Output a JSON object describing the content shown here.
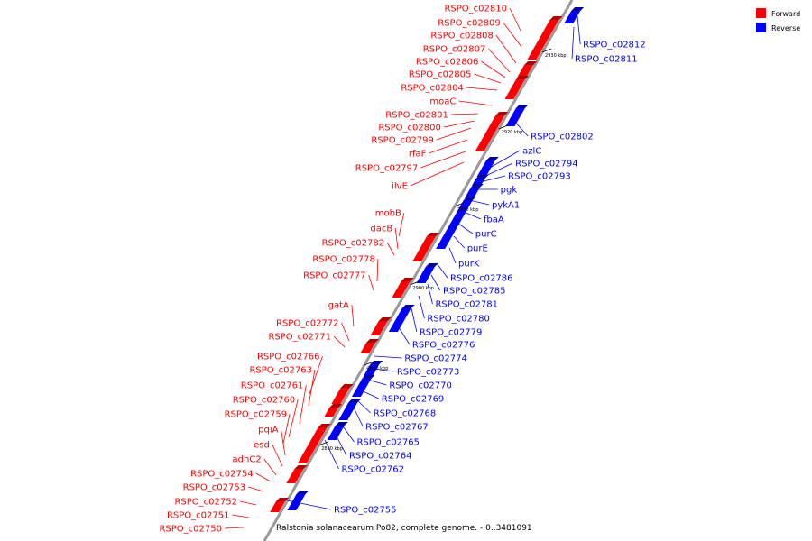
{
  "legend": [
    {
      "label": "Forward",
      "color": "#ff0000"
    },
    {
      "label": "Reverse",
      "color": "#0000ff"
    }
  ],
  "colors": {
    "forward": "#ff0000",
    "reverse": "#0000ff",
    "axis": "#999999",
    "line": "#000000"
  },
  "caption": "Ralstonia solanacearum Po82, complete genome. - 0..3481091",
  "scale_labels": [
    "2930 kbp",
    "2920 kbp",
    "2910 kbp",
    "2900 kbp",
    "2890 kbp",
    "2880 kbp"
  ],
  "forward_labels": [
    "RSPO_c02810",
    "RSPO_c02809",
    "RSPO_c02808",
    "RSPO_c02807",
    "RSPO_c02806",
    "RSPO_c02805",
    "RSPO_c02804",
    "moaC",
    "RSPO_c02801",
    "RSPO_c02800",
    "RSPO_c02799",
    "rfaF",
    "RSPO_c02797",
    "ilvE",
    "mobB",
    "dacB",
    "RSPO_c02782",
    "RSPO_c02778",
    "RSPO_c02777",
    "gatA",
    "RSPO_c02772",
    "RSPO_c02771",
    "RSPO_c02766",
    "RSPO_c02763",
    "RSPO_c02761",
    "RSPO_c02760",
    "RSPO_c02759",
    "pqiA",
    "esd",
    "adhC2",
    "RSPO_c02754",
    "RSPO_c02753",
    "RSPO_c02752",
    "RSPO_c02751",
    "RSPO_c02750"
  ],
  "reverse_labels": [
    "RSPO_c02812",
    "RSPO_c02811",
    "RSPO_c02802",
    "azlC",
    "RSPO_c02794",
    "RSPO_c02793",
    "pgk",
    "pykA1",
    "fbaA",
    "purC",
    "purE",
    "purK",
    "RSPO_c02786",
    "RSPO_c02785",
    "RSPO_c02781",
    "RSPO_c02780",
    "RSPO_c02779",
    "RSPO_c02776",
    "RSPO_c02774",
    "RSPO_c02773",
    "RSPO_c02770",
    "RSPO_c02769",
    "RSPO_c02768",
    "RSPO_c02767",
    "RSPO_c02765",
    "RSPO_c02764",
    "RSPO_c02762",
    "RSPO_c02755"
  ]
}
